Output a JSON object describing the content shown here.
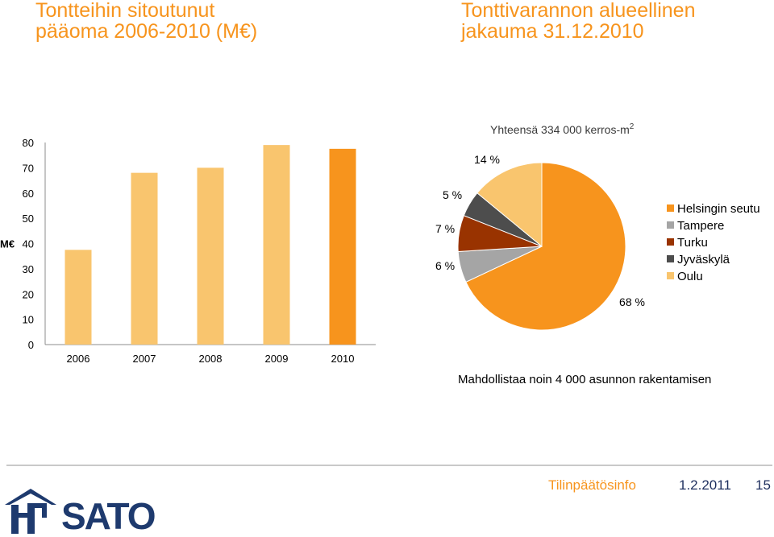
{
  "titles": {
    "bar": [
      "Tontteihin sitoutunut",
      "pääoma 2006-2010 (M€)"
    ],
    "pie": [
      "Tonttivarannon alueellinen",
      "jakauma 31.12.2010"
    ]
  },
  "colors": {
    "title": "#f7941d",
    "bar_light": "#f9c56e",
    "bar_highlight": "#f7941d",
    "navy": "#1e3a6e"
  },
  "chart_data": [
    {
      "type": "bar",
      "title": "Tontteihin sitoutunut pääoma 2006-2010 (M€)",
      "xlabel": "",
      "ylabel": "M€",
      "categories": [
        "2006",
        "2007",
        "2008",
        "2009",
        "2010"
      ],
      "values": [
        37.5,
        68,
        70,
        79,
        77.5
      ],
      "ylim": [
        0,
        80
      ],
      "yticks": [
        0,
        10,
        20,
        30,
        40,
        50,
        60,
        70,
        80
      ],
      "grid": false,
      "bar_colors": [
        "#f9c56e",
        "#f9c56e",
        "#f9c56e",
        "#f9c56e",
        "#f7941d"
      ]
    },
    {
      "type": "pie",
      "title": "Yhteensä 334 000 kerros-m²",
      "title_main": "Yhteensä 334 000 kerros-m",
      "title_sup": "2",
      "subtitle": "Mahdollistaa noin 4 000 asunnon rakentamisen",
      "slices": [
        {
          "label": "Helsingin seutu",
          "value": 68,
          "display": "68 %",
          "color": "#f7941d"
        },
        {
          "label": "Tampere",
          "value": 6,
          "display": "6 %",
          "color": "#a5a5a5"
        },
        {
          "label": "Turku",
          "value": 7,
          "display": "7 %",
          "color": "#993300"
        },
        {
          "label": "Jyväskylä",
          "value": 5,
          "display": "5 %",
          "color": "#4d4d4d"
        },
        {
          "label": "Oulu",
          "value": 14,
          "display": "14 %",
          "color": "#f9c56e"
        }
      ],
      "legend_position": "right"
    }
  ],
  "footer": {
    "left": "Tilinpäätösinfo",
    "date": "1.2.2011",
    "page": "15"
  },
  "logo": {
    "text": "SATO"
  }
}
